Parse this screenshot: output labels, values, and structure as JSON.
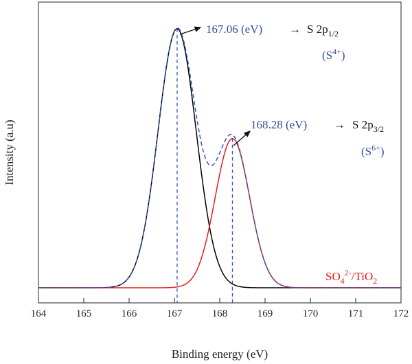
{
  "chart_data": {
    "type": "line",
    "xlabel": "Binding energy (eV)",
    "ylabel": "Intensity (a.u)",
    "xlim": [
      164,
      172
    ],
    "x_ticks": [
      "164",
      "165",
      "166",
      "167",
      "168",
      "169",
      "170",
      "171",
      "172"
    ],
    "grid": false,
    "peaks": [
      {
        "center": 167.06,
        "height": 0.92,
        "sigma": 0.42,
        "color": "#000000"
      },
      {
        "center": 168.28,
        "height": 0.53,
        "sigma": 0.38,
        "color": "#e31b1b"
      }
    ],
    "envelope": {
      "style": "dashed",
      "color": "#2f55b5"
    },
    "peak_markers": [
      167.06,
      168.28
    ],
    "annotations": [
      {
        "value_text": "167.06 (eV)",
        "arrow": "→",
        "species": "S 2p",
        "species_sub": "1/2",
        "state_open": "(S",
        "state_sup": "4+",
        "state_close": ")"
      },
      {
        "value_text": "168.28 (eV)",
        "arrow": "→",
        "species": "S 2p",
        "species_sub": "3/2",
        "state_open": "(S",
        "state_sup": "6+",
        "state_close": ")"
      }
    ],
    "sample_label": {
      "base1": "SO",
      "sub1": "4",
      "sup1": "2-",
      "mid": "/TiO",
      "sub2": "2"
    }
  }
}
